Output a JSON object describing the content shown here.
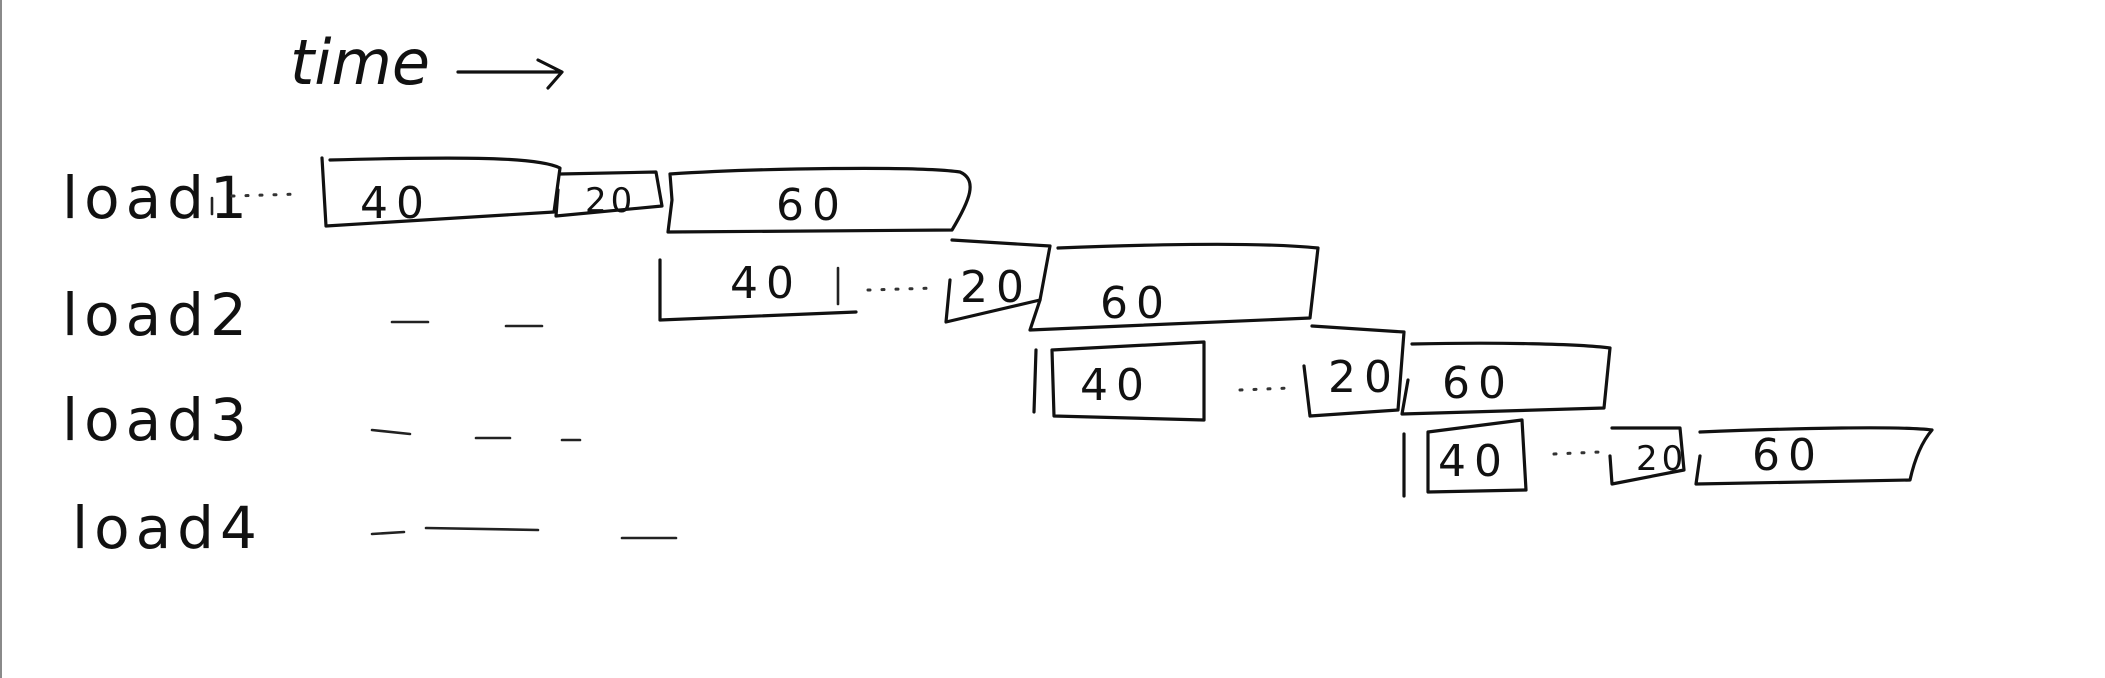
{
  "diagram": {
    "title": "time",
    "rows": [
      {
        "label": "load1",
        "segments": [
          "40",
          "20",
          "60"
        ]
      },
      {
        "label": "load2",
        "segments": [
          "40",
          "20",
          "60"
        ]
      },
      {
        "label": "load3",
        "segments": [
          "40",
          "20",
          "60"
        ]
      },
      {
        "label": "load4",
        "segments": [
          "40",
          "20",
          "60"
        ]
      }
    ]
  }
}
